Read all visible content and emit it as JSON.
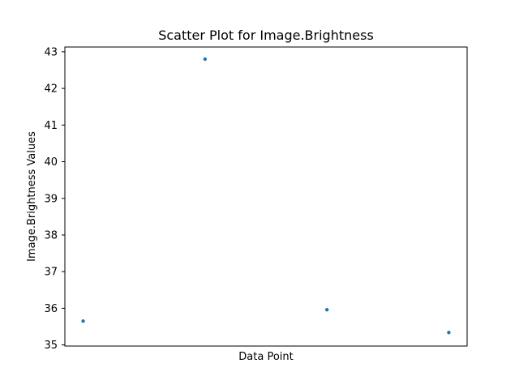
{
  "chart_data": {
    "type": "scatter",
    "title": "Scatter Plot for Image.Brightness",
    "xlabel": "Data Point",
    "ylabel": "Image.Brightness Values",
    "x": [
      0,
      1,
      2,
      3
    ],
    "y": [
      35.65,
      42.8,
      35.96,
      35.34
    ],
    "xlim": [
      -0.15,
      3.15
    ],
    "ylim": [
      34.97,
      43.13
    ],
    "yticks": [
      35,
      36,
      37,
      38,
      39,
      40,
      41,
      42,
      43
    ],
    "xticks": [],
    "grid": false,
    "marker_color": "#1f77b4"
  }
}
